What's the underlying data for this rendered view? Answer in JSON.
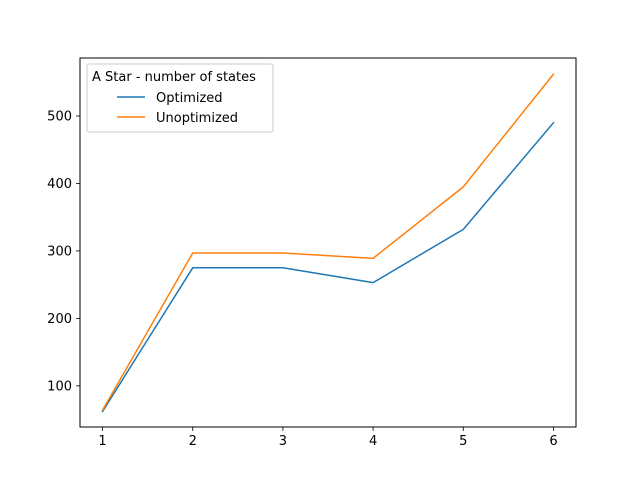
{
  "chart_data": {
    "type": "line",
    "title": "",
    "xlabel": "",
    "ylabel": "",
    "x": [
      1,
      2,
      3,
      4,
      5,
      6
    ],
    "xlim": [
      0.75,
      6.25
    ],
    "ylim": [
      39,
      586
    ],
    "xticks": [
      1,
      2,
      3,
      4,
      5,
      6
    ],
    "yticks": [
      100,
      200,
      300,
      400,
      500
    ],
    "grid": false,
    "legend": {
      "title": "A Star - number of states",
      "placement": "top-left"
    },
    "series": [
      {
        "name": "Optimized",
        "color": "#1f77b4",
        "values": [
          62,
          275,
          275,
          253,
          332,
          490
        ]
      },
      {
        "name": "Unoptimized",
        "color": "#ff7f0e",
        "values": [
          64,
          297,
          297,
          289,
          395,
          562
        ]
      }
    ]
  }
}
